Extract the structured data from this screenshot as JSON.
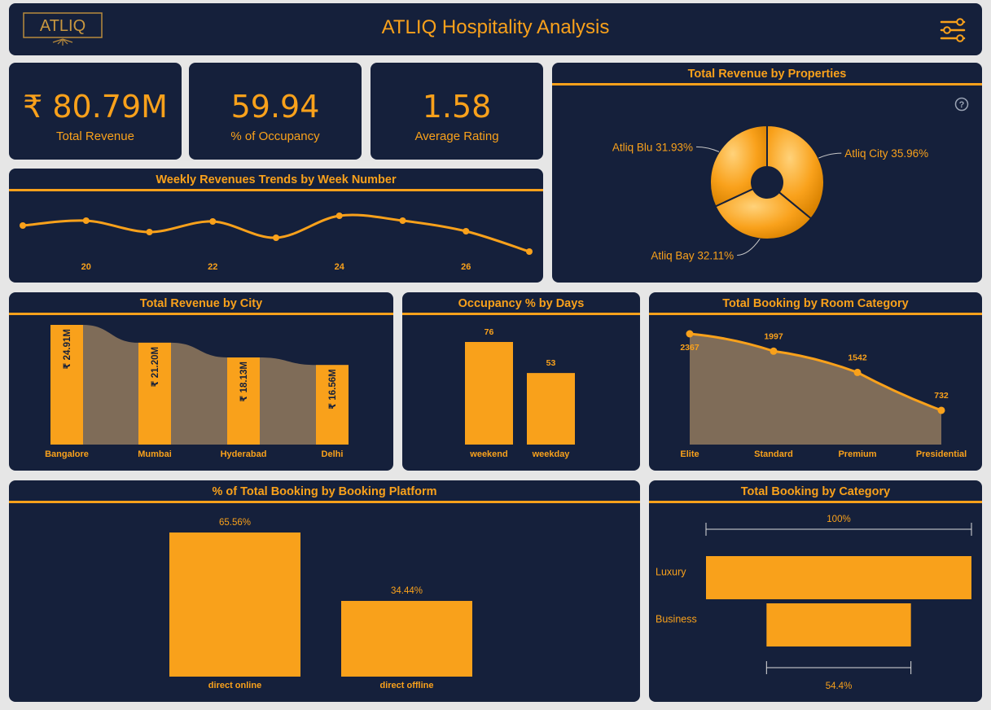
{
  "header": {
    "logo_text": "ATLIQ",
    "title": "ATLIQ Hospitality Analysis",
    "menu_icon": "sliders-icon"
  },
  "kpis": [
    {
      "value": "₹ 80.79M",
      "label": "Total Revenue"
    },
    {
      "value": "59.94",
      "label": "% of Occupancy"
    },
    {
      "value": "1.58",
      "label": "Average Rating"
    }
  ],
  "colors": {
    "accent": "#f9a11b",
    "panel": "#15203b",
    "background": "#e6e6e6",
    "area_fill": "#7f6c58"
  },
  "chart_data": [
    {
      "id": "properties",
      "type": "pie",
      "title": "Total Revenue by Properties",
      "help_icon": "question-circle-icon",
      "labels": [
        "Atliq City 35.96%",
        "Atliq Bay 32.11%",
        "Atliq Blu 31.93%"
      ],
      "categories": [
        "Atliq City",
        "Atliq Bay",
        "Atliq Blu"
      ],
      "values": [
        35.96,
        32.11,
        31.93
      ]
    },
    {
      "id": "weekly",
      "type": "line",
      "title": "Weekly Revenues Trends by Week Number",
      "x": [
        19,
        20,
        21,
        22,
        23,
        24,
        25,
        26,
        27
      ],
      "tick_labels": [
        "20",
        "22",
        "24",
        "26"
      ],
      "tick_values": [
        20,
        22,
        24,
        26
      ],
      "series": [
        {
          "values": [
            9.0,
            9.6,
            8.2,
            9.5,
            7.5,
            10.2,
            9.6,
            8.3,
            5.8
          ]
        }
      ],
      "ylim": [
        4,
        12
      ]
    },
    {
      "id": "city",
      "type": "bar",
      "title": "Total Revenue by City",
      "categories": [
        "Bangalore",
        "Mumbai",
        "Hyderabad",
        "Delhi"
      ],
      "values": [
        24.91,
        21.2,
        18.13,
        16.56
      ],
      "data_labels": [
        "₹ 24.91M",
        "₹ 21.20M",
        "₹ 18.13M",
        "₹ 16.56M"
      ]
    },
    {
      "id": "days",
      "type": "bar",
      "title": "Occupancy % by Days",
      "categories": [
        "weekend",
        "weekday"
      ],
      "values": [
        76,
        53
      ],
      "data_labels": [
        "76",
        "53"
      ]
    },
    {
      "id": "room",
      "type": "area",
      "title": "Total Booking by Room Category",
      "categories": [
        "Elite",
        "Standard",
        "Premium",
        "Presidential"
      ],
      "values": [
        2367,
        1997,
        1542,
        732
      ],
      "data_labels": [
        "2367",
        "1997",
        "1542",
        "732"
      ]
    },
    {
      "id": "platform",
      "type": "bar",
      "title": "% of Total Booking by Booking Platform",
      "categories": [
        "direct online",
        "direct offline"
      ],
      "values": [
        65.56,
        34.44
      ],
      "data_labels": [
        "65.56%",
        "34.44%"
      ]
    },
    {
      "id": "category",
      "type": "bar",
      "orientation": "funnel",
      "title": "Total Booking by Category",
      "categories": [
        "Luxury",
        "Business"
      ],
      "values": [
        100,
        54.4
      ],
      "top_label": "100%",
      "bottom_label": "54.4%"
    }
  ]
}
